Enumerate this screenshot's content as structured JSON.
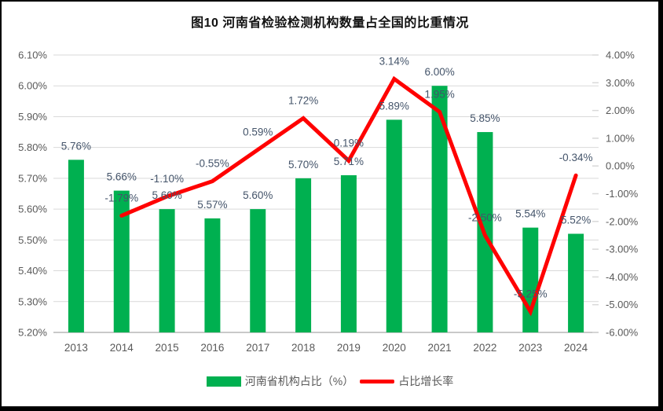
{
  "window": {
    "title": "图10  河南省检验检测机构数量占全国的比重情况"
  },
  "colors": {
    "bar": "#00B050",
    "line": "#FF0000",
    "grid": "#D9D9D9",
    "axis_line": "#C9C9C9",
    "axis_text": "#595959",
    "data_label_text": "#44546A",
    "title_text": "#111111",
    "background": "#FFFFFF",
    "border": "#000000"
  },
  "chart_data": {
    "type": "bar+line combo",
    "title": "图10  河南省检验检测机构数量占全国的比重情况",
    "categories": [
      "2013",
      "2014",
      "2015",
      "2016",
      "2017",
      "2018",
      "2019",
      "2020",
      "2021",
      "2022",
      "2023",
      "2024"
    ],
    "series": [
      {
        "name": "河南省机构占比（%）",
        "type": "bar",
        "axis": "left",
        "color": "#00B050",
        "values": [
          5.76,
          5.66,
          5.6,
          5.57,
          5.6,
          5.7,
          5.71,
          5.89,
          6.0,
          5.85,
          5.54,
          5.52
        ],
        "labels": [
          "5.76%",
          "5.66%",
          "5.60%",
          "5.57%",
          "5.60%",
          "5.70%",
          "5.71%",
          "5.89%",
          "6.00%",
          "5.85%",
          "5.54%",
          "5.52%"
        ]
      },
      {
        "name": "占比增长率",
        "type": "line",
        "axis": "right",
        "color": "#FF0000",
        "values": [
          null,
          -1.79,
          -1.1,
          -0.55,
          0.59,
          1.72,
          0.19,
          3.14,
          1.95,
          -2.5,
          -5.25,
          -0.34
        ],
        "labels": [
          null,
          "-1.79%",
          "-1.10%",
          "-0.55%",
          "0.59%",
          "1.72%",
          "0.19%",
          "3.14%",
          "1.95%",
          "-2.50%",
          "-5.25%",
          "-0.34%"
        ]
      }
    ],
    "left_axis": {
      "min": 5.2,
      "max": 6.1,
      "step": 0.1,
      "ticks": [
        "6.10%",
        "6.00%",
        "5.90%",
        "5.80%",
        "5.70%",
        "5.60%",
        "5.50%",
        "5.40%",
        "5.30%",
        "5.20%"
      ]
    },
    "right_axis": {
      "min": -6.0,
      "max": 4.0,
      "step": 1.0,
      "ticks": [
        "4.00%",
        "3.00%",
        "2.00%",
        "1.00%",
        "0.00%",
        "-1.00%",
        "-2.00%",
        "-3.00%",
        "-4.00%",
        "-5.00%",
        "-6.00%"
      ]
    },
    "grid": true,
    "legend_position": "bottom"
  }
}
